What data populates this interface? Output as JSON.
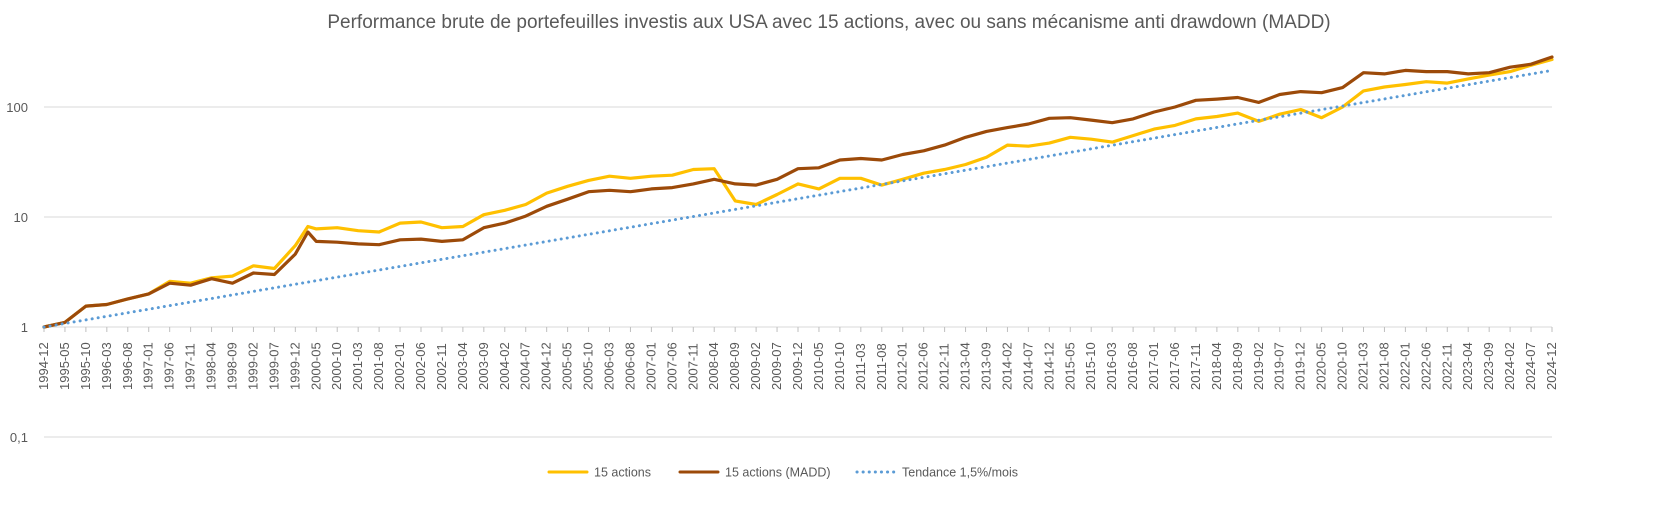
{
  "chart_data": {
    "type": "line",
    "title": "Performance brute de portefeuilles investis aux USA avec 15 actions, avec ou sans mécanisme anti drawdown (MADD)",
    "xlabel": "",
    "ylabel": "",
    "yscale": "log",
    "ylim": [
      0.1,
      300
    ],
    "y_ticks": [
      "0,1",
      "1",
      "10",
      "100"
    ],
    "grid": true,
    "legend_position": "bottom",
    "x_ticks": [
      "1994-12",
      "1995-05",
      "1995-10",
      "1996-03",
      "1996-08",
      "1997-01",
      "1997-06",
      "1997-11",
      "1998-04",
      "1998-09",
      "1999-02",
      "1999-07",
      "1999-12",
      "2000-05",
      "2000-10",
      "2001-03",
      "2001-08",
      "2002-01",
      "2002-06",
      "2002-11",
      "2003-04",
      "2003-09",
      "2004-02",
      "2004-07",
      "2004-12",
      "2005-05",
      "2005-10",
      "2006-03",
      "2006-08",
      "2007-01",
      "2007-06",
      "2007-11",
      "2008-04",
      "2008-09",
      "2009-02",
      "2009-07",
      "2009-12",
      "2010-05",
      "2010-10",
      "2011-03",
      "2011-08",
      "2012-01",
      "2012-06",
      "2012-11",
      "2013-04",
      "2013-09",
      "2014-02",
      "2014-07",
      "2014-12",
      "2015-05",
      "2015-10",
      "2016-03",
      "2016-08",
      "2017-01",
      "2017-06",
      "2017-11",
      "2018-04",
      "2018-09",
      "2019-02",
      "2019-07",
      "2019-12",
      "2020-05",
      "2020-10",
      "2021-03",
      "2021-08",
      "2022-01",
      "2022-06",
      "2022-11",
      "2023-04",
      "2023-09",
      "2024-02",
      "2024-07",
      "2024-12"
    ],
    "x": [
      "1994-12",
      "1995-05",
      "1995-10",
      "1996-03",
      "1996-08",
      "1997-01",
      "1997-06",
      "1997-11",
      "1998-04",
      "1998-09",
      "1999-02",
      "1999-07",
      "1999-12",
      "2000-03",
      "2000-05",
      "2000-10",
      "2001-03",
      "2001-08",
      "2002-01",
      "2002-06",
      "2002-11",
      "2003-04",
      "2003-09",
      "2004-02",
      "2004-07",
      "2004-12",
      "2005-05",
      "2005-10",
      "2006-03",
      "2006-08",
      "2007-01",
      "2007-06",
      "2007-11",
      "2008-04",
      "2008-09",
      "2009-02",
      "2009-07",
      "2009-12",
      "2010-05",
      "2010-10",
      "2011-03",
      "2011-08",
      "2012-01",
      "2012-06",
      "2012-11",
      "2013-04",
      "2013-09",
      "2014-02",
      "2014-07",
      "2014-12",
      "2015-05",
      "2015-10",
      "2016-03",
      "2016-08",
      "2017-01",
      "2017-06",
      "2017-11",
      "2018-04",
      "2018-09",
      "2019-02",
      "2019-07",
      "2019-12",
      "2020-05",
      "2020-10",
      "2021-03",
      "2021-08",
      "2022-01",
      "2022-06",
      "2022-11",
      "2023-04",
      "2023-09",
      "2024-02",
      "2024-07",
      "2024-12"
    ],
    "series": [
      {
        "name": "15 actions",
        "color": "#FFC000",
        "style": "solid",
        "values": [
          1.0,
          1.1,
          1.55,
          1.6,
          1.8,
          2.0,
          2.6,
          2.5,
          2.8,
          2.9,
          3.6,
          3.4,
          5.5,
          8.2,
          7.8,
          8.0,
          7.5,
          7.3,
          8.8,
          9.0,
          8.0,
          8.2,
          10.5,
          11.5,
          13.0,
          16.5,
          19.0,
          21.5,
          23.5,
          22.5,
          23.5,
          24.0,
          27.0,
          27.5,
          14.0,
          13.0,
          16.0,
          20.0,
          18.0,
          22.5,
          22.5,
          19.5,
          22.0,
          25.0,
          27.0,
          30.0,
          35.0,
          45.0,
          44.0,
          47.0,
          53.0,
          51.0,
          48.0,
          55.0,
          63.0,
          68.0,
          78.0,
          82.0,
          88.0,
          74.0,
          86.0,
          95.0,
          80.0,
          100.0,
          140.0,
          152.0,
          160.0,
          170.0,
          165.0,
          180.0,
          195.0,
          210.0,
          240.0,
          270.0
        ]
      },
      {
        "name": "15 actions (MADD)",
        "color": "#9C4A09",
        "style": "solid",
        "values": [
          1.0,
          1.1,
          1.55,
          1.6,
          1.8,
          2.0,
          2.5,
          2.4,
          2.75,
          2.5,
          3.1,
          3.0,
          4.6,
          7.3,
          6.0,
          5.9,
          5.7,
          5.6,
          6.2,
          6.3,
          6.0,
          6.2,
          8.0,
          8.8,
          10.2,
          12.5,
          14.5,
          17.0,
          17.5,
          17.0,
          18.0,
          18.5,
          20.0,
          22.0,
          20.0,
          19.5,
          22.0,
          27.5,
          28.0,
          33.0,
          34.0,
          33.0,
          37.0,
          40.0,
          45.0,
          53.0,
          60.0,
          65.0,
          70.0,
          79.0,
          80.0,
          76.0,
          72.0,
          78.0,
          90.0,
          100.0,
          115.0,
          118.0,
          122.0,
          110.0,
          130.0,
          138.0,
          135.0,
          150.0,
          205.0,
          200.0,
          215.0,
          210.0,
          210.0,
          200.0,
          205.0,
          230.0,
          245.0,
          285.0
        ]
      },
      {
        "name": "Tendance 1,5%/mois",
        "color": "#5B9BD5",
        "style": "dotted",
        "start": 1.0,
        "end": 215.0
      }
    ]
  }
}
